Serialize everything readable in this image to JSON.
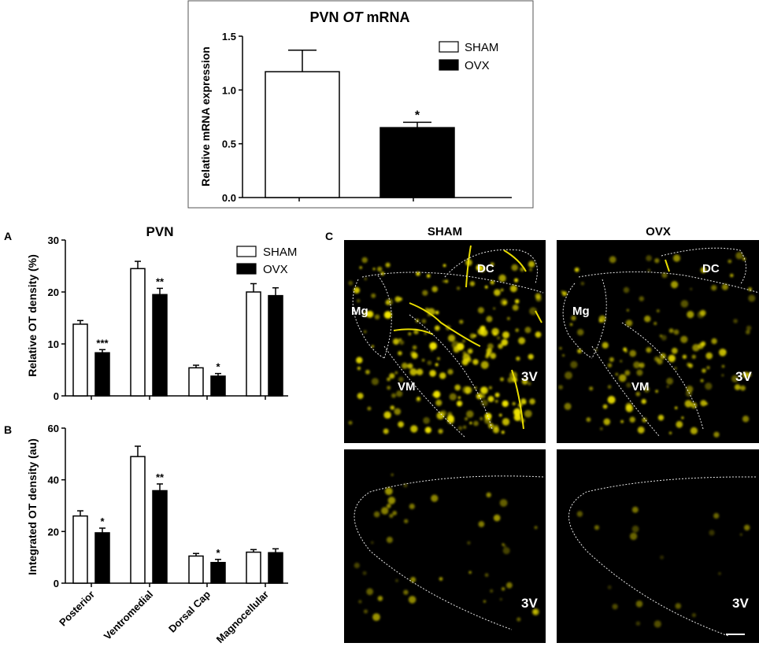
{
  "colors": {
    "sham": "#ffffff",
    "ovx": "#000000",
    "axis": "#000000",
    "micro_bg": "#000000",
    "cell": "#f2e600",
    "outline": "#e8e8e8"
  },
  "legend": [
    "SHAM",
    "OVX"
  ],
  "chart_data": [
    {
      "type": "bar",
      "title_prefix": "PVN ",
      "title_italic": "OT",
      "title_suffix": " mRNA",
      "ylabel": "Relative mRNA expression",
      "ylim": [
        0,
        1.5
      ],
      "yticks": [
        "0.0",
        "0.5",
        "1.0",
        "1.5"
      ],
      "ytick_values": [
        0,
        0.5,
        1.0,
        1.5
      ],
      "legend_placement": "top-right",
      "series": [
        {
          "name": "SHAM",
          "values": [
            1.17
          ],
          "errors": [
            0.2
          ],
          "sig": [
            ""
          ]
        },
        {
          "name": "OVX",
          "values": [
            0.65
          ],
          "errors": [
            0.05
          ],
          "sig": [
            "*"
          ]
        }
      ]
    },
    {
      "type": "bar",
      "panel": "A",
      "title": "PVN",
      "ylabel": "Relative OT density (%)",
      "ylim": [
        0,
        30
      ],
      "yticks": [
        "0",
        "10",
        "20",
        "30"
      ],
      "ytick_values": [
        0,
        10,
        20,
        30
      ],
      "legend_placement": "top-right",
      "categories": [
        "Posterior",
        "Ventromedial",
        "Dorsal Cap",
        "Magnocellular"
      ],
      "series": [
        {
          "name": "SHAM",
          "values": [
            13.8,
            24.5,
            5.4,
            20.0
          ],
          "errors": [
            0.7,
            1.4,
            0.5,
            1.6
          ],
          "sig": [
            "",
            "",
            "",
            ""
          ]
        },
        {
          "name": "OVX",
          "values": [
            8.3,
            19.5,
            3.8,
            19.3
          ],
          "errors": [
            0.6,
            1.2,
            0.5,
            1.5
          ],
          "sig": [
            "***",
            "**",
            "*",
            ""
          ]
        }
      ]
    },
    {
      "type": "bar",
      "panel": "B",
      "ylabel": "Integrated OT density (au)",
      "ylim": [
        0,
        60
      ],
      "yticks": [
        "0",
        "20",
        "40",
        "60"
      ],
      "ytick_values": [
        0,
        20,
        40,
        60
      ],
      "categories": [
        "Posterior",
        "Ventromedial",
        "Dorsal Cap",
        "Magnocellular"
      ],
      "series": [
        {
          "name": "SHAM",
          "values": [
            26.0,
            49.0,
            10.5,
            12.0
          ],
          "errors": [
            2.0,
            4.0,
            1.0,
            1.0
          ],
          "sig": [
            "",
            "",
            "",
            ""
          ]
        },
        {
          "name": "OVX",
          "values": [
            19.5,
            35.8,
            8.0,
            11.8
          ],
          "errors": [
            1.8,
            2.6,
            1.2,
            1.5
          ],
          "sig": [
            "*",
            "**",
            "*",
            ""
          ]
        }
      ]
    }
  ],
  "micrographs": {
    "panel": "C",
    "col_headers": [
      "SHAM",
      "OVX"
    ],
    "top_labels": [
      "DC",
      "Mg",
      "VM",
      "3V"
    ],
    "bottom_labels": [
      "3V"
    ]
  }
}
